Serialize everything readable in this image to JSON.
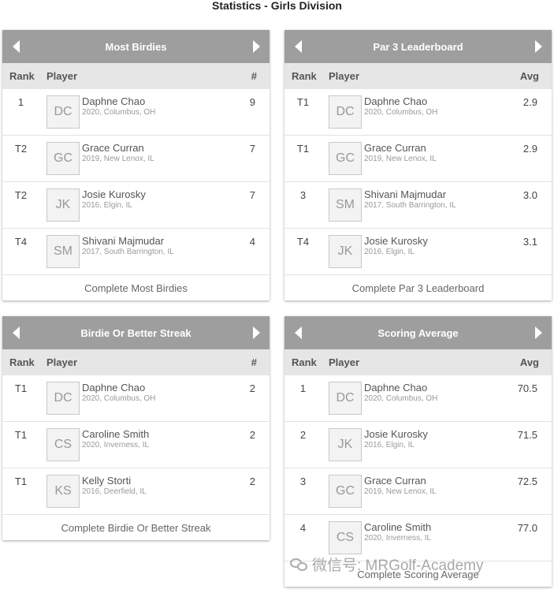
{
  "page": {
    "title": "Statistics - Girls Division"
  },
  "cards": [
    {
      "title": "Most Birdies",
      "columns": {
        "rank": "Rank",
        "player": "Player",
        "value": "#"
      },
      "rows": [
        {
          "rank": "1",
          "initials": "DC",
          "name": "Daphne Chao",
          "meta": "2020, Columbus, OH",
          "value": "9"
        },
        {
          "rank": "T2",
          "initials": "GC",
          "name": "Grace Curran",
          "meta": "2019, New Lenox, IL",
          "value": "7"
        },
        {
          "rank": "T2",
          "initials": "JK",
          "name": "Josie Kurosky",
          "meta": "2016, Elgin, IL",
          "value": "7"
        },
        {
          "rank": "T4",
          "initials": "SM",
          "name": "Shivani Majmudar",
          "meta": "2017, South Barrington, IL",
          "value": "4"
        }
      ],
      "footer": "Complete Most Birdies"
    },
    {
      "title": "Par 3 Leaderboard",
      "columns": {
        "rank": "Rank",
        "player": "Player",
        "value": "Avg"
      },
      "rows": [
        {
          "rank": "T1",
          "initials": "DC",
          "name": "Daphne Chao",
          "meta": "2020, Columbus, OH",
          "value": "2.9"
        },
        {
          "rank": "T1",
          "initials": "GC",
          "name": "Grace Curran",
          "meta": "2019, New Lenox, IL",
          "value": "2.9"
        },
        {
          "rank": "3",
          "initials": "SM",
          "name": "Shivani Majmudar",
          "meta": "2017, South Barrington, IL",
          "value": "3.0"
        },
        {
          "rank": "T4",
          "initials": "JK",
          "name": "Josie Kurosky",
          "meta": "2016, Elgin, IL",
          "value": "3.1"
        }
      ],
      "footer": "Complete Par 3 Leaderboard"
    },
    {
      "title": "Birdie Or Better Streak",
      "columns": {
        "rank": "Rank",
        "player": "Player",
        "value": "#"
      },
      "rows": [
        {
          "rank": "T1",
          "initials": "DC",
          "name": "Daphne Chao",
          "meta": "2020, Columbus, OH",
          "value": "2"
        },
        {
          "rank": "T1",
          "initials": "CS",
          "name": "Caroline Smith",
          "meta": "2020, Inverness, IL",
          "value": "2"
        },
        {
          "rank": "T1",
          "initials": "KS",
          "name": "Kelly Storti",
          "meta": "2016, Deerfield, IL",
          "value": "2"
        }
      ],
      "footer": "Complete Birdie Or Better Streak"
    },
    {
      "title": "Scoring Average",
      "columns": {
        "rank": "Rank",
        "player": "Player",
        "value": "Avg"
      },
      "rows": [
        {
          "rank": "1",
          "initials": "DC",
          "name": "Daphne Chao",
          "meta": "2020, Columbus, OH",
          "value": "70.5"
        },
        {
          "rank": "2",
          "initials": "JK",
          "name": "Josie Kurosky",
          "meta": "2016, Elgin, IL",
          "value": "71.5"
        },
        {
          "rank": "3",
          "initials": "GC",
          "name": "Grace Curran",
          "meta": "2019, New Lenox, IL",
          "value": "72.5"
        },
        {
          "rank": "4",
          "initials": "CS",
          "name": "Caroline Smith",
          "meta": "2020, Inverness, IL",
          "value": "77.0"
        }
      ],
      "footer": "Complete Scoring Average"
    }
  ],
  "watermark": {
    "text": "微信号: MRGolf-Academy",
    "icon": "wechat-icon"
  }
}
